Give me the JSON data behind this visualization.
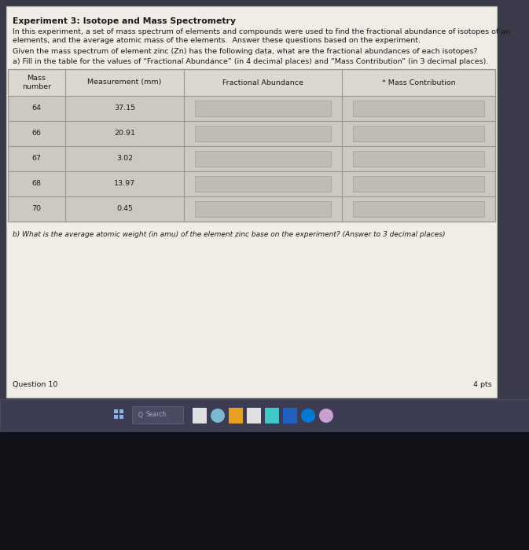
{
  "title": "Experiment 3: Isotope and Mass Spectrometry",
  "intro_text_1": "In this experiment, a set of mass spectrum of elements and compounds were used to find the fractional abundance of isotopes of an",
  "intro_text_2": "elements, and the average atomic mass of the elements.  Answer these questions based on the experiment.",
  "given_text": "Given the mass spectrum of element zinc (Zn) has the following data, what are the fractional abundances of each isotopes?",
  "instruction_a": "a) Fill in the table for the values of “Fractional Abundance” (in 4 decimal places) and “Mass Contribution” (in 3 decimal places).",
  "col_headers": [
    "Mass\nnumber",
    "Measurement (mm)",
    "Fractional Abundance",
    "* Mass Contribution"
  ],
  "rows": [
    [
      "64",
      "37.15",
      "",
      ""
    ],
    [
      "66",
      "20.91",
      "",
      ""
    ],
    [
      "67",
      "3.02",
      "",
      ""
    ],
    [
      "68",
      "13.97",
      "",
      ""
    ],
    [
      "70",
      "0.45",
      "",
      ""
    ]
  ],
  "question_b": "b) What is the average atomic weight (in amu) of the element zinc base on the experiment? (Answer to 3 decimal places)",
  "footer_left": "Question 10",
  "footer_right": "4 pts",
  "page_bg": "#f0ede7",
  "page_border": "#c0bcb5",
  "outer_bg": "#3a3a4a",
  "table_header_bg": "#dbd8d0",
  "table_row_bg": "#ccc9c2",
  "input_box_bg": "#bfbcb5",
  "input_box_border": "#a8a5a0",
  "taskbar_bg": "#3c3d52",
  "taskbar_border": "#555570",
  "below_taskbar_bg": "#111118",
  "text_color": "#1a1a1a",
  "table_line_color": "#999690"
}
